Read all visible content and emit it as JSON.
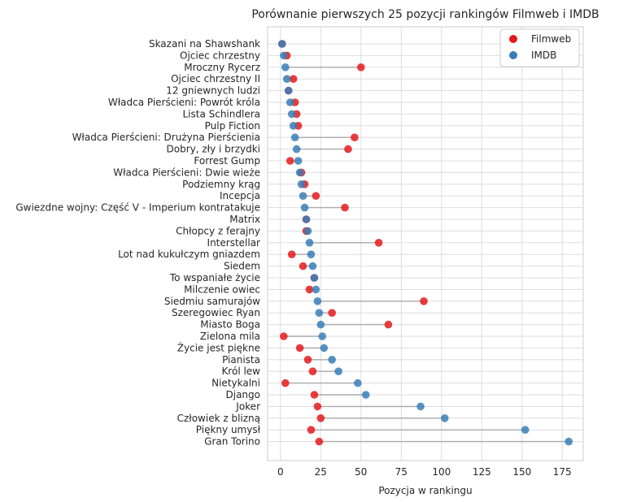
{
  "chart_data": {
    "type": "dumbbell",
    "title": "Porównanie pierwszych 25 pozycji rankingów Filmweb i IMDB",
    "xlabel": "Pozycja w rankingu",
    "ylabel": "",
    "xlim": [
      -8,
      188
    ],
    "xticks": [
      0,
      25,
      50,
      75,
      100,
      125,
      150,
      175
    ],
    "grid": true,
    "legend_position": "top-right",
    "series": [
      {
        "name": "Filmweb",
        "color": "#e41a1c"
      },
      {
        "name": "IMDB",
        "color": "#377eb8"
      }
    ],
    "connector_color": "#aaaaaa",
    "rows": [
      {
        "label": "Skazani na Shawshank",
        "filmweb": 1,
        "imdb": 1
      },
      {
        "label": "Ojciec chrzestny",
        "filmweb": 4,
        "imdb": 2
      },
      {
        "label": "Mroczny Rycerz",
        "filmweb": 50,
        "imdb": 3
      },
      {
        "label": "Ojciec chrzestny II",
        "filmweb": 8,
        "imdb": 4
      },
      {
        "label": "12 gniewnych ludzi",
        "filmweb": 5,
        "imdb": 5
      },
      {
        "label": "Władca Pierścieni: Powrót króla",
        "filmweb": 9,
        "imdb": 6
      },
      {
        "label": "Lista Schindlera",
        "filmweb": 10,
        "imdb": 7
      },
      {
        "label": "Pulp Fiction",
        "filmweb": 11,
        "imdb": 8
      },
      {
        "label": "Władca Pierścieni: Drużyna Pierścienia",
        "filmweb": 46,
        "imdb": 9
      },
      {
        "label": "Dobry, zły i brzydki",
        "filmweb": 42,
        "imdb": 10
      },
      {
        "label": "Forrest Gump",
        "filmweb": 6,
        "imdb": 11
      },
      {
        "label": "Władca Pierścieni: Dwie wieże",
        "filmweb": 13,
        "imdb": 12
      },
      {
        "label": "Podziemny krąg",
        "filmweb": 15,
        "imdb": 13
      },
      {
        "label": "Incepcja",
        "filmweb": 22,
        "imdb": 14
      },
      {
        "label": "Gwiezdne wojny: Część V - Imperium kontratakuje",
        "filmweb": 40,
        "imdb": 15
      },
      {
        "label": "Matrix",
        "filmweb": 16,
        "imdb": 16
      },
      {
        "label": "Chłopcy z ferajny",
        "filmweb": 16,
        "imdb": 17
      },
      {
        "label": "Interstellar",
        "filmweb": 61,
        "imdb": 18
      },
      {
        "label": "Lot nad kukułczym gniazdem",
        "filmweb": 7,
        "imdb": 19
      },
      {
        "label": "Siedem",
        "filmweb": 14,
        "imdb": 20
      },
      {
        "label": "To wspaniałe życie",
        "filmweb": 21,
        "imdb": 21
      },
      {
        "label": "Milczenie owiec",
        "filmweb": 18,
        "imdb": 22
      },
      {
        "label": "Siedmiu samurajów",
        "filmweb": 89,
        "imdb": 23
      },
      {
        "label": "Szeregowiec Ryan",
        "filmweb": 32,
        "imdb": 24
      },
      {
        "label": "Miasto Boga",
        "filmweb": 67,
        "imdb": 25
      },
      {
        "label": "Zielona mila",
        "filmweb": 2,
        "imdb": 26
      },
      {
        "label": "Życie jest piękne",
        "filmweb": 12,
        "imdb": 27
      },
      {
        "label": "Pianista",
        "filmweb": 17,
        "imdb": 32
      },
      {
        "label": "Król lew",
        "filmweb": 20,
        "imdb": 36
      },
      {
        "label": "Nietykalni",
        "filmweb": 3,
        "imdb": 48
      },
      {
        "label": "Django",
        "filmweb": 21,
        "imdb": 53
      },
      {
        "label": "Joker",
        "filmweb": 23,
        "imdb": 87
      },
      {
        "label": "Człowiek z blizną",
        "filmweb": 25,
        "imdb": 102
      },
      {
        "label": "Piękny umysł",
        "filmweb": 19,
        "imdb": 152
      },
      {
        "label": "Gran Torino",
        "filmweb": 24,
        "imdb": 179
      }
    ]
  }
}
